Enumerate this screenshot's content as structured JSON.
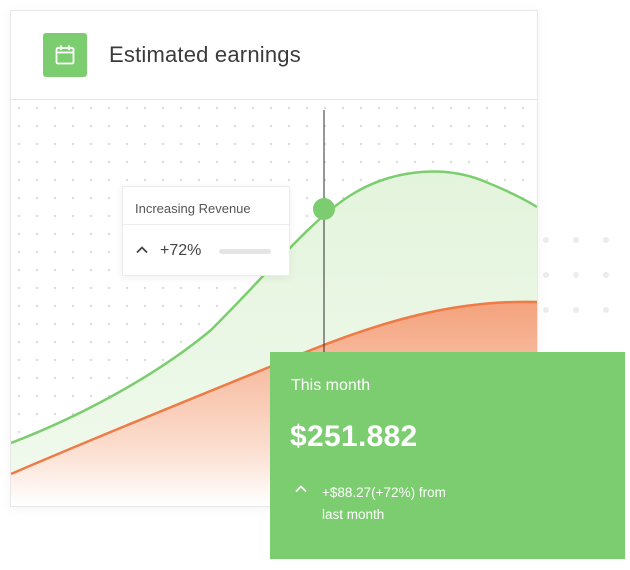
{
  "header": {
    "title": "Estimated earnings",
    "icon": "calendar-icon"
  },
  "chart_data": {
    "type": "area",
    "title": "",
    "series": [
      {
        "color": "#7ccd6f"
      },
      {
        "color": "#f07a45"
      }
    ]
  },
  "revenue_card": {
    "title": "Increasing Revenue",
    "value": "+72%",
    "icon": "chevron-up-icon"
  },
  "month_card": {
    "label": "This month",
    "amount": "$251.882",
    "change_line1": "+$88.27(+72%) from",
    "change_line2": "last month",
    "icon": "chevron-up-icon"
  },
  "colors": {
    "accent_green": "#7ccd6f",
    "accent_orange": "#f07a45"
  }
}
